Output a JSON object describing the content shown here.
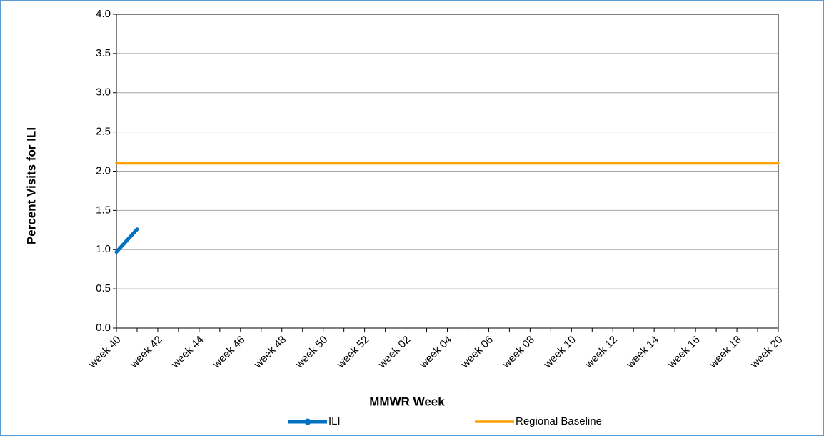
{
  "chart_data": {
    "type": "line",
    "categories": [
      "week 40",
      null,
      "week 42",
      null,
      "week 44",
      null,
      "week 46",
      null,
      "week 48",
      null,
      "week 50",
      null,
      "week 52",
      null,
      "week 02",
      null,
      "week 04",
      null,
      "week 06",
      null,
      "week 08",
      null,
      "week 10",
      null,
      "week 12",
      null,
      "week 14",
      null,
      "week 16",
      null,
      "week 18",
      null,
      "week 20"
    ],
    "series": [
      {
        "name": "ILI",
        "color": "#0070c0",
        "marker": "circle",
        "values": [
          0.97,
          1.26,
          null,
          null,
          null,
          null,
          null,
          null,
          null,
          null,
          null,
          null,
          null,
          null,
          null,
          null,
          null,
          null,
          null,
          null,
          null,
          null,
          null,
          null,
          null,
          null,
          null,
          null,
          null,
          null,
          null,
          null,
          null
        ]
      },
      {
        "name": "Regional Baseline",
        "color": "#ffa000",
        "values": [
          2.1,
          2.1,
          2.1,
          2.1,
          2.1,
          2.1,
          2.1,
          2.1,
          2.1,
          2.1,
          2.1,
          2.1,
          2.1,
          2.1,
          2.1,
          2.1,
          2.1,
          2.1,
          2.1,
          2.1,
          2.1,
          2.1,
          2.1,
          2.1,
          2.1,
          2.1,
          2.1,
          2.1,
          2.1,
          2.1,
          2.1,
          2.1,
          2.1
        ]
      }
    ],
    "ylabel": "Percent Visits for ILI",
    "xlabel": "MMWR Week",
    "ylim": [
      0,
      4
    ],
    "yticks": [
      {
        "value": 0,
        "label": "0.0"
      },
      0.5,
      {
        "value": 1,
        "label": "1.0"
      },
      1.5,
      {
        "value": 2,
        "label": "2.0"
      },
      2.5,
      {
        "value": 3,
        "label": "3.0"
      },
      3.5,
      {
        "value": 4,
        "label": "4.0"
      }
    ],
    "grid": true,
    "legend": "bottom"
  }
}
